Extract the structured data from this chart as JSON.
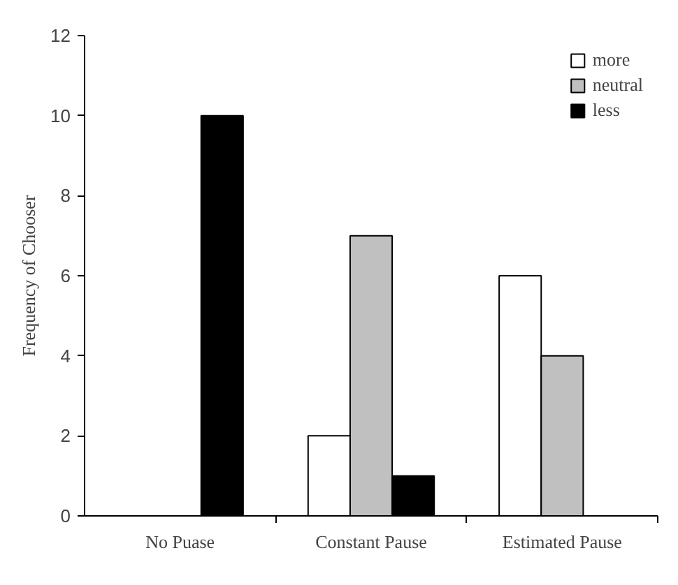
{
  "chart_data": {
    "type": "bar",
    "ylabel": "Frequency of Chooser",
    "categories": [
      "No Puase",
      "Constant Pause",
      "Estimated Pause"
    ],
    "series": [
      {
        "name": "more",
        "color": "#ffffff",
        "values": [
          null,
          2,
          6
        ]
      },
      {
        "name": "neutral",
        "color": "#c0c0c0",
        "values": [
          null,
          7,
          4
        ]
      },
      {
        "name": "less",
        "color": "#000000",
        "values": [
          10,
          1,
          null
        ]
      }
    ],
    "ylim": [
      0,
      12
    ],
    "yticks": [
      0,
      2,
      4,
      6,
      8,
      10,
      12
    ],
    "grid": false,
    "legend": "top right"
  }
}
